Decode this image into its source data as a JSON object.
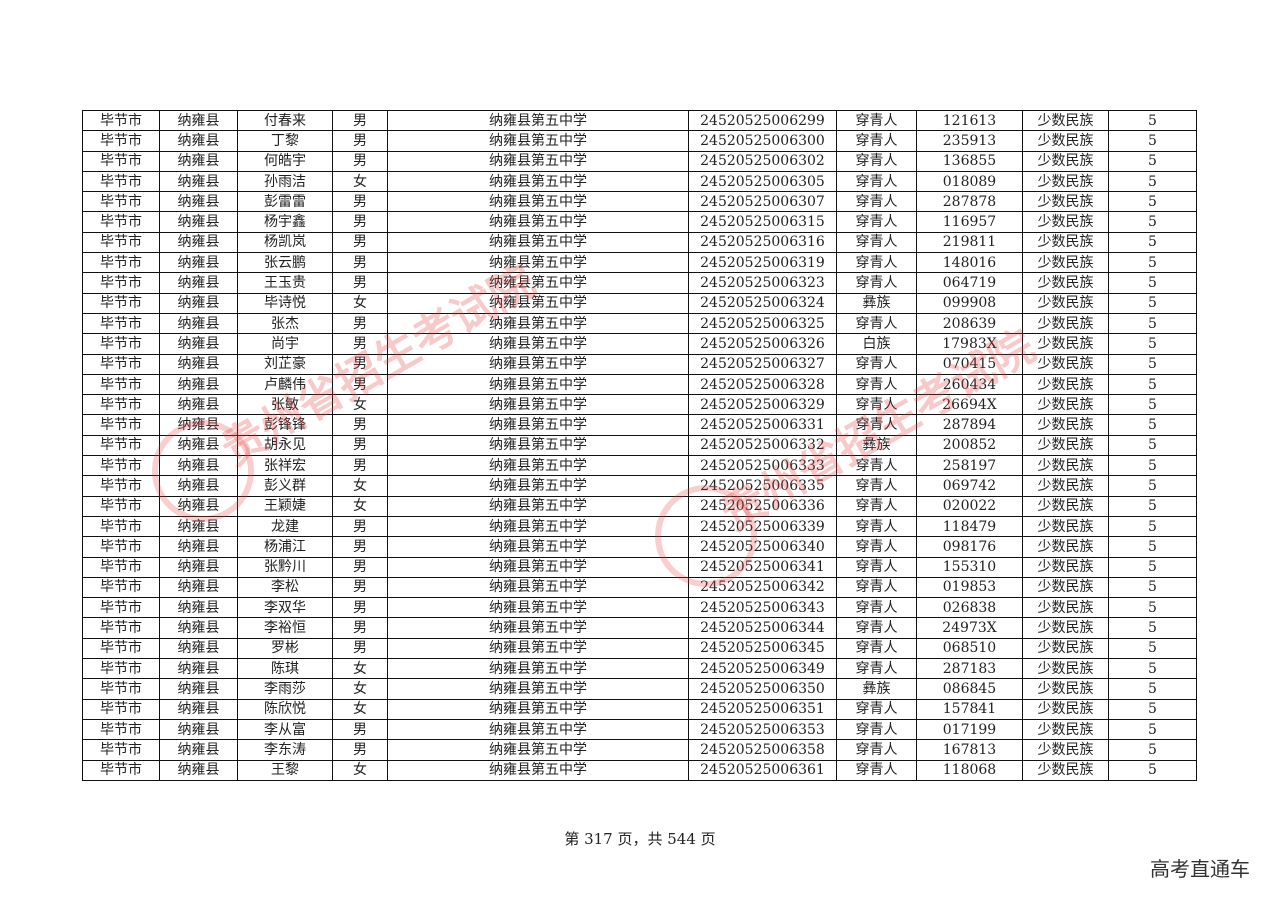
{
  "columns_note_hidden": null,
  "rows": [
    [
      "毕节市",
      "纳雍县",
      "付春来",
      "男",
      "纳雍县第五中学",
      "24520525006299",
      "穿青人",
      "121613",
      "少数民族",
      "5"
    ],
    [
      "毕节市",
      "纳雍县",
      "丁黎",
      "男",
      "纳雍县第五中学",
      "24520525006300",
      "穿青人",
      "235913",
      "少数民族",
      "5"
    ],
    [
      "毕节市",
      "纳雍县",
      "何皓宇",
      "男",
      "纳雍县第五中学",
      "24520525006302",
      "穿青人",
      "136855",
      "少数民族",
      "5"
    ],
    [
      "毕节市",
      "纳雍县",
      "孙雨洁",
      "女",
      "纳雍县第五中学",
      "24520525006305",
      "穿青人",
      "018089",
      "少数民族",
      "5"
    ],
    [
      "毕节市",
      "纳雍县",
      "彭雷雷",
      "男",
      "纳雍县第五中学",
      "24520525006307",
      "穿青人",
      "287878",
      "少数民族",
      "5"
    ],
    [
      "毕节市",
      "纳雍县",
      "杨宇鑫",
      "男",
      "纳雍县第五中学",
      "24520525006315",
      "穿青人",
      "116957",
      "少数民族",
      "5"
    ],
    [
      "毕节市",
      "纳雍县",
      "杨凯岚",
      "男",
      "纳雍县第五中学",
      "24520525006316",
      "穿青人",
      "219811",
      "少数民族",
      "5"
    ],
    [
      "毕节市",
      "纳雍县",
      "张云鹏",
      "男",
      "纳雍县第五中学",
      "24520525006319",
      "穿青人",
      "148016",
      "少数民族",
      "5"
    ],
    [
      "毕节市",
      "纳雍县",
      "王玉贵",
      "男",
      "纳雍县第五中学",
      "24520525006323",
      "穿青人",
      "064719",
      "少数民族",
      "5"
    ],
    [
      "毕节市",
      "纳雍县",
      "毕诗悦",
      "女",
      "纳雍县第五中学",
      "24520525006324",
      "彝族",
      "099908",
      "少数民族",
      "5"
    ],
    [
      "毕节市",
      "纳雍县",
      "张杰",
      "男",
      "纳雍县第五中学",
      "24520525006325",
      "穿青人",
      "208639",
      "少数民族",
      "5"
    ],
    [
      "毕节市",
      "纳雍县",
      "尚宇",
      "男",
      "纳雍县第五中学",
      "24520525006326",
      "白族",
      "17983X",
      "少数民族",
      "5"
    ],
    [
      "毕节市",
      "纳雍县",
      "刘芷豪",
      "男",
      "纳雍县第五中学",
      "24520525006327",
      "穿青人",
      "070415",
      "少数民族",
      "5"
    ],
    [
      "毕节市",
      "纳雍县",
      "卢麟伟",
      "男",
      "纳雍县第五中学",
      "24520525006328",
      "穿青人",
      "260434",
      "少数民族",
      "5"
    ],
    [
      "毕节市",
      "纳雍县",
      "张敏",
      "女",
      "纳雍县第五中学",
      "24520525006329",
      "穿青人",
      "26694X",
      "少数民族",
      "5"
    ],
    [
      "毕节市",
      "纳雍县",
      "彭锋锋",
      "男",
      "纳雍县第五中学",
      "24520525006331",
      "穿青人",
      "287894",
      "少数民族",
      "5"
    ],
    [
      "毕节市",
      "纳雍县",
      "胡永见",
      "男",
      "纳雍县第五中学",
      "24520525006332",
      "彝族",
      "200852",
      "少数民族",
      "5"
    ],
    [
      "毕节市",
      "纳雍县",
      "张祥宏",
      "男",
      "纳雍县第五中学",
      "24520525006333",
      "穿青人",
      "258197",
      "少数民族",
      "5"
    ],
    [
      "毕节市",
      "纳雍县",
      "彭义群",
      "女",
      "纳雍县第五中学",
      "24520525006335",
      "穿青人",
      "069742",
      "少数民族",
      "5"
    ],
    [
      "毕节市",
      "纳雍县",
      "王颖婕",
      "女",
      "纳雍县第五中学",
      "24520525006336",
      "穿青人",
      "020022",
      "少数民族",
      "5"
    ],
    [
      "毕节市",
      "纳雍县",
      "龙建",
      "男",
      "纳雍县第五中学",
      "24520525006339",
      "穿青人",
      "118479",
      "少数民族",
      "5"
    ],
    [
      "毕节市",
      "纳雍县",
      "杨浦江",
      "男",
      "纳雍县第五中学",
      "24520525006340",
      "穿青人",
      "098176",
      "少数民族",
      "5"
    ],
    [
      "毕节市",
      "纳雍县",
      "张黔川",
      "男",
      "纳雍县第五中学",
      "24520525006341",
      "穿青人",
      "155310",
      "少数民族",
      "5"
    ],
    [
      "毕节市",
      "纳雍县",
      "李松",
      "男",
      "纳雍县第五中学",
      "24520525006342",
      "穿青人",
      "019853",
      "少数民族",
      "5"
    ],
    [
      "毕节市",
      "纳雍县",
      "李双华",
      "男",
      "纳雍县第五中学",
      "24520525006343",
      "穿青人",
      "026838",
      "少数民族",
      "5"
    ],
    [
      "毕节市",
      "纳雍县",
      "李裕恒",
      "男",
      "纳雍县第五中学",
      "24520525006344",
      "穿青人",
      "24973X",
      "少数民族",
      "5"
    ],
    [
      "毕节市",
      "纳雍县",
      "罗彬",
      "男",
      "纳雍县第五中学",
      "24520525006345",
      "穿青人",
      "068510",
      "少数民族",
      "5"
    ],
    [
      "毕节市",
      "纳雍县",
      "陈琪",
      "女",
      "纳雍县第五中学",
      "24520525006349",
      "穿青人",
      "287183",
      "少数民族",
      "5"
    ],
    [
      "毕节市",
      "纳雍县",
      "李雨莎",
      "女",
      "纳雍县第五中学",
      "24520525006350",
      "彝族",
      "086845",
      "少数民族",
      "5"
    ],
    [
      "毕节市",
      "纳雍县",
      "陈欣悦",
      "女",
      "纳雍县第五中学",
      "24520525006351",
      "穿青人",
      "157841",
      "少数民族",
      "5"
    ],
    [
      "毕节市",
      "纳雍县",
      "李从富",
      "男",
      "纳雍县第五中学",
      "24520525006353",
      "穿青人",
      "017199",
      "少数民族",
      "5"
    ],
    [
      "毕节市",
      "纳雍县",
      "李东涛",
      "男",
      "纳雍县第五中学",
      "24520525006358",
      "穿青人",
      "167813",
      "少数民族",
      "5"
    ],
    [
      "毕节市",
      "纳雍县",
      "王黎",
      "女",
      "纳雍县第五中学",
      "24520525006361",
      "穿青人",
      "118068",
      "少数民族",
      "5"
    ]
  ],
  "footer": {
    "page_text": "第 317 页，共 544 页"
  },
  "brand": "高考直通车",
  "watermark": "贵州省招生考试院",
  "watermark_color": "#e63c3c"
}
